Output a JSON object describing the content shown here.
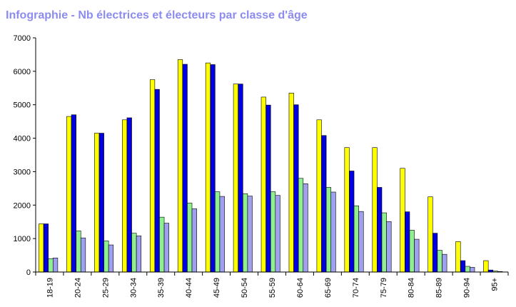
{
  "chart_data": {
    "type": "bar",
    "title": "Infographie - Nb électrices et électeurs par classe d'âge",
    "categories": [
      "18-19",
      "20-24",
      "25-29",
      "30-34",
      "35-39",
      "40-44",
      "45-49",
      "50-54",
      "55-59",
      "60-64",
      "65-69",
      "70-74",
      "75-79",
      "80-84",
      "85-89",
      "90-94",
      "95+"
    ],
    "ylim": [
      0,
      7000
    ],
    "yticks": [
      "0",
      "1000",
      "2000",
      "3000",
      "4000",
      "5000",
      "6000",
      "7000"
    ],
    "grid": false,
    "legend": "none",
    "series": [
      {
        "color": "#ffff00",
        "values": [
          1440,
          4650,
          4150,
          4550,
          5750,
          6350,
          6250,
          5620,
          5230,
          5350,
          4550,
          3720,
          3720,
          3100,
          2250,
          910,
          340
        ]
      },
      {
        "color": "#0000e0",
        "values": [
          1440,
          4700,
          4150,
          4610,
          5460,
          6210,
          6200,
          5620,
          4990,
          5000,
          4080,
          3020,
          2530,
          1800,
          1160,
          340,
          60
        ]
      },
      {
        "color": "#90f090",
        "values": [
          400,
          1230,
          930,
          1160,
          1640,
          2060,
          2400,
          2340,
          2400,
          2800,
          2530,
          1980,
          1770,
          1250,
          650,
          170,
          30
        ]
      },
      {
        "color": "#a0a0f0",
        "values": [
          420,
          1020,
          810,
          1080,
          1460,
          1890,
          2260,
          2270,
          2290,
          2640,
          2390,
          1810,
          1510,
          980,
          530,
          140,
          15
        ]
      }
    ]
  }
}
